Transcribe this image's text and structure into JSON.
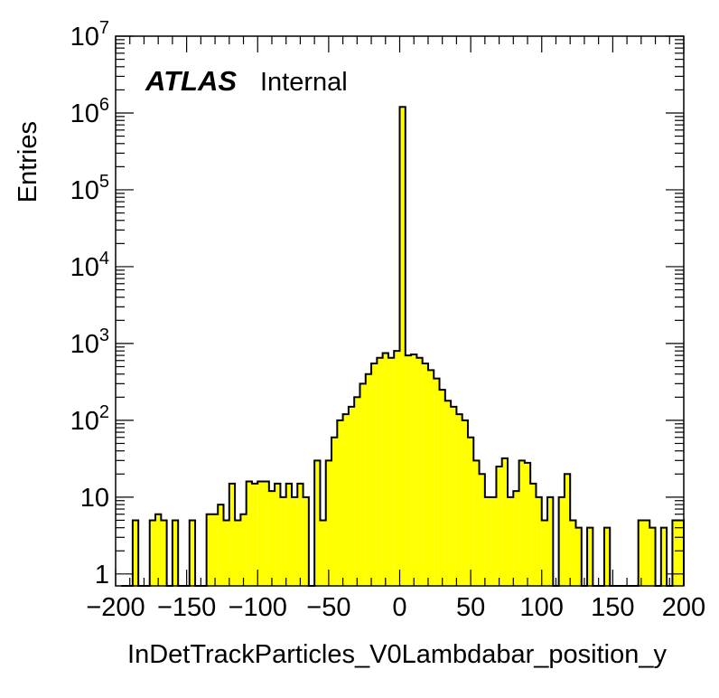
{
  "chart_data": {
    "type": "bar",
    "histogram": true,
    "xlabel": "InDetTrackParticles_V0Lambdabar_position_y",
    "ylabel": "Entries",
    "xlim": [
      -200,
      200
    ],
    "ylim": [
      0.7,
      10000000
    ],
    "log_y": true,
    "grid": false,
    "fill_color": "#ffff00",
    "line_color": "#000000",
    "annotation": {
      "experiment": "ATLAS",
      "status": "Internal"
    },
    "x_ticks": [
      {
        "value": -200,
        "label": "−200"
      },
      {
        "value": -150,
        "label": "−150"
      },
      {
        "value": -100,
        "label": "−100"
      },
      {
        "value": -50,
        "label": "−50"
      },
      {
        "value": 0,
        "label": "0"
      },
      {
        "value": 50,
        "label": "50"
      },
      {
        "value": 100,
        "label": "100"
      },
      {
        "value": 150,
        "label": "150"
      },
      {
        "value": 200,
        "label": "200"
      }
    ],
    "y_ticks": [
      {
        "value": 1,
        "base": "1",
        "exp": ""
      },
      {
        "value": 10,
        "base": "10",
        "exp": ""
      },
      {
        "value": 100,
        "base": "10",
        "exp": "2"
      },
      {
        "value": 1000,
        "base": "10",
        "exp": "3"
      },
      {
        "value": 10000,
        "base": "10",
        "exp": "4"
      },
      {
        "value": 100000,
        "base": "10",
        "exp": "5"
      },
      {
        "value": 1000000,
        "base": "10",
        "exp": "6"
      },
      {
        "value": 10000000,
        "base": "10",
        "exp": "7"
      }
    ],
    "bin_low_edges": [
      -196,
      -192,
      -188,
      -184,
      -180,
      -176,
      -172,
      -168,
      -164,
      -160,
      -156,
      -152,
      -148,
      -144,
      -140,
      -136,
      -132,
      -128,
      -124,
      -120,
      -116,
      -112,
      -108,
      -104,
      -100,
      -96,
      -92,
      -88,
      -84,
      -80,
      -76,
      -72,
      -68,
      -64,
      -60,
      -56,
      -52,
      -48,
      -44,
      -40,
      -36,
      -32,
      -28,
      -24,
      -20,
      -16,
      -12,
      -8,
      -4,
      0,
      4,
      8,
      12,
      16,
      20,
      24,
      28,
      32,
      36,
      40,
      44,
      48,
      52,
      56,
      60,
      64,
      68,
      72,
      76,
      80,
      84,
      88,
      92,
      96,
      100,
      104,
      108,
      112,
      116,
      120,
      124,
      128,
      132,
      136,
      140,
      144,
      148,
      152,
      156,
      160,
      164,
      168,
      172,
      176,
      180,
      184,
      188,
      192,
      196
    ],
    "values": [
      0,
      0,
      5,
      0,
      0,
      5,
      6,
      5,
      0,
      5,
      0,
      0,
      5,
      0,
      0,
      6,
      6,
      8,
      5,
      15,
      5,
      6,
      16,
      15,
      16,
      16,
      12,
      15,
      10,
      15,
      10,
      15,
      10,
      0,
      30,
      5,
      30,
      60,
      100,
      120,
      150,
      200,
      300,
      400,
      550,
      650,
      750,
      650,
      800,
      1200000,
      700,
      720,
      650,
      550,
      450,
      350,
      250,
      180,
      150,
      120,
      100,
      60,
      30,
      20,
      10,
      10,
      25,
      32,
      10,
      12,
      30,
      28,
      15,
      10,
      5,
      10,
      0,
      10,
      20,
      5,
      4,
      0,
      4,
      0,
      0,
      4,
      0,
      0,
      0,
      0,
      0,
      5,
      5,
      4,
      0,
      4,
      0,
      5,
      5
    ]
  }
}
